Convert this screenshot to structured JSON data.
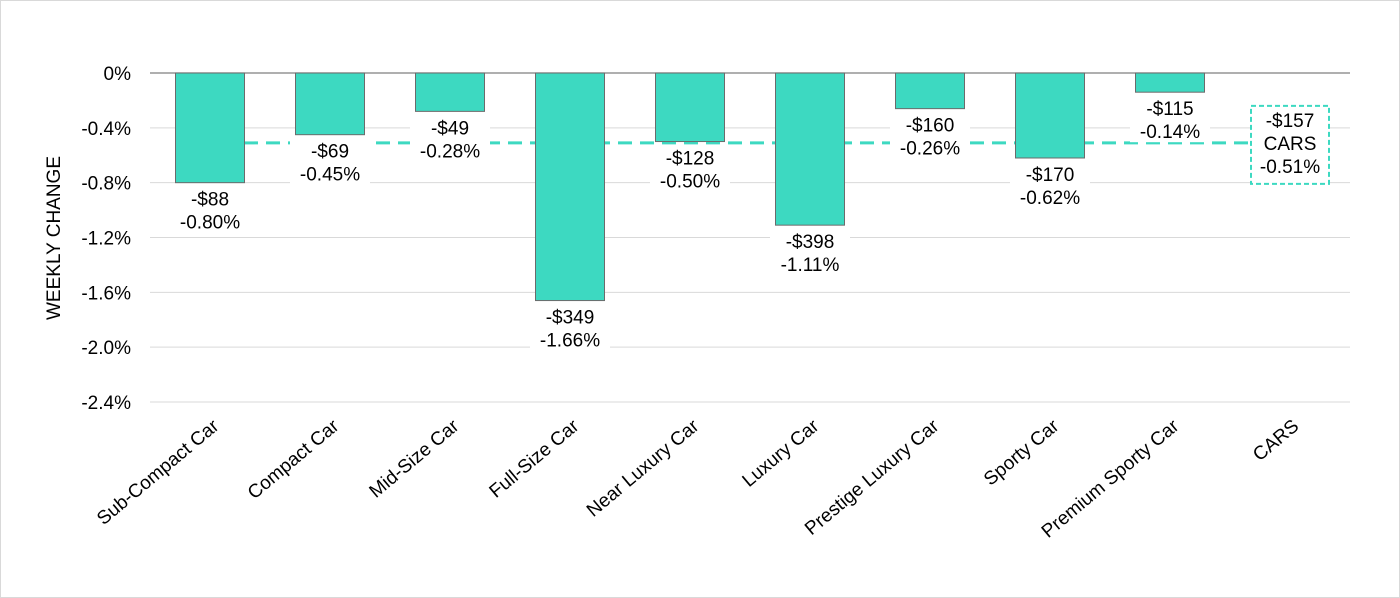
{
  "chart_data": {
    "type": "bar",
    "ylabel": "WEEKLY CHANGE",
    "xlabel": "",
    "ylim": [
      -2.4,
      0
    ],
    "y_ticks": [
      "0%",
      "-0.4%",
      "-0.8%",
      "-1.2%",
      "-1.6%",
      "-2.0%",
      "-2.4%"
    ],
    "y_tick_values": [
      0,
      -0.4,
      -0.8,
      -1.2,
      -1.6,
      -2.0,
      -2.4
    ],
    "grid": true,
    "categories": [
      "Sub-Compact Car",
      "Compact Car",
      "Mid-Size Car",
      "Full-Size Car",
      "Near Luxury Car",
      "Luxury Car",
      "Prestige Luxury Car",
      "Sporty Car",
      "Premium Sporty Car",
      "CARS"
    ],
    "values": [
      -0.8,
      -0.45,
      -0.28,
      -1.66,
      -0.5,
      -1.11,
      -0.26,
      -0.62,
      -0.14,
      null
    ],
    "dollar_labels": [
      "-$88",
      "-$69",
      "-$49",
      "-$349",
      "-$128",
      "-$398",
      "-$160",
      "-$170",
      "-$115",
      "-$157"
    ],
    "percent_labels": [
      "-0.80%",
      "-0.45%",
      "-0.28%",
      "-1.66%",
      "-0.50%",
      "-1.11%",
      "-0.26%",
      "-0.62%",
      "-0.14%",
      "-0.51%"
    ],
    "reference_line": {
      "value": -0.51,
      "dollar_label": "-$157",
      "name_label": "CARS",
      "percent_label": "-0.51%"
    },
    "colors": {
      "bar": "#3dd9c1",
      "bar_edge": "#6b6b6b",
      "reference": "#3dd9c1",
      "grid": "#d9d9d9",
      "zero_line": "#7f7f7f"
    }
  }
}
